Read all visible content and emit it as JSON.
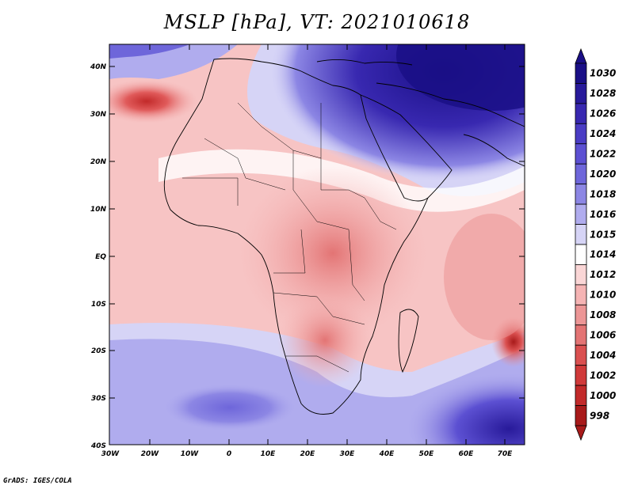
{
  "title": "MSLP [hPa], VT: 2021010618",
  "credit": "GrADS: IGES/COLA",
  "axes": {
    "lat_labels": [
      "40N",
      "30N",
      "20N",
      "10N",
      "EQ",
      "10S",
      "20S",
      "30S",
      "40S"
    ],
    "lon_labels": [
      "30W",
      "20W",
      "10W",
      "0",
      "10E",
      "20E",
      "30E",
      "40E",
      "50E",
      "60E",
      "70E"
    ]
  },
  "colorbar": {
    "levels": [
      "1030",
      "1028",
      "1026",
      "1024",
      "1022",
      "1020",
      "1018",
      "1016",
      "1015",
      "1014",
      "1012",
      "1010",
      "1008",
      "1006",
      "1004",
      "1002",
      "1000",
      "998"
    ],
    "colors": [
      "#1a0f86",
      "#281a9a",
      "#3828b0",
      "#4a3cc4",
      "#5c50d2",
      "#6e66da",
      "#8c86e4",
      "#b0acee",
      "#d6d4f6",
      "#ffffff",
      "#fad6d6",
      "#f5b4b4",
      "#ec9696",
      "#e37474",
      "#da5050",
      "#d03a3a",
      "#c22a2a",
      "#a81a1a"
    ]
  },
  "regions": {
    "high_pressure_north": "1030",
    "low_pressure_atlantic": "1006",
    "low_pressure_indian": "1000"
  }
}
